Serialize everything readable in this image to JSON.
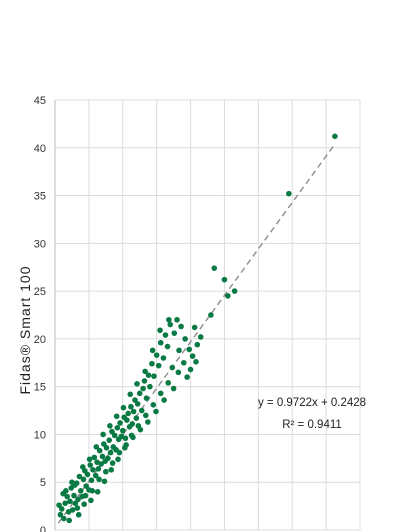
{
  "chart_data": {
    "type": "scatter",
    "ylabel": "Fidas® Smart 100",
    "xlabel": "",
    "ylim": [
      0,
      45
    ],
    "xlim": [
      0,
      45
    ],
    "yticks": [
      "0",
      "5",
      "10",
      "15",
      "20",
      "25",
      "30",
      "35",
      "40",
      "45"
    ],
    "grid": true,
    "marker_color": "#0a7a45",
    "trendline": {
      "slope": 0.9722,
      "intercept": 0.2428,
      "x_range": [
        0.5,
        41.3
      ],
      "style": "dashed",
      "color": "#8c8c8c",
      "equation": "y = 0.9722x + 0.2428",
      "r2_label": "R² = 0.9411"
    },
    "series": [
      {
        "points": [
          [
            0.8,
            1.6
          ],
          [
            1.0,
            2.2
          ],
          [
            1.3,
            1.2
          ],
          [
            1.5,
            2.8
          ],
          [
            1.8,
            3.5
          ],
          [
            2.0,
            1.9
          ],
          [
            2.2,
            3.0
          ],
          [
            2.4,
            4.4
          ],
          [
            2.6,
            2.1
          ],
          [
            2.8,
            3.6
          ],
          [
            3.0,
            2.8
          ],
          [
            3.2,
            4.9
          ],
          [
            3.4,
            3.2
          ],
          [
            3.6,
            5.6
          ],
          [
            3.8,
            4.1
          ],
          [
            4.0,
            3.5
          ],
          [
            4.2,
            5.3
          ],
          [
            4.4,
            6.2
          ],
          [
            4.6,
            4.6
          ],
          [
            4.8,
            5.8
          ],
          [
            5.0,
            4.2
          ],
          [
            5.2,
            6.8
          ],
          [
            5.4,
            5.2
          ],
          [
            5.6,
            6.3
          ],
          [
            5.8,
            7.6
          ],
          [
            6.0,
            5.7
          ],
          [
            6.2,
            7.1
          ],
          [
            6.4,
            6.4
          ],
          [
            6.6,
            8.3
          ],
          [
            6.8,
            6.9
          ],
          [
            7.0,
            7.7
          ],
          [
            7.2,
            9.0
          ],
          [
            7.4,
            7.2
          ],
          [
            7.6,
            8.6
          ],
          [
            7.8,
            7.5
          ],
          [
            8.0,
            9.4
          ],
          [
            8.2,
            8.1
          ],
          [
            8.4,
            10.3
          ],
          [
            8.6,
            8.7
          ],
          [
            8.8,
            9.9
          ],
          [
            9.0,
            8.4
          ],
          [
            9.2,
            10.7
          ],
          [
            9.4,
            9.5
          ],
          [
            9.6,
            11.2
          ],
          [
            9.8,
            9.8
          ],
          [
            10.0,
            10.4
          ],
          [
            10.2,
            11.8
          ],
          [
            10.4,
            9.6
          ],
          [
            10.6,
            11.5
          ],
          [
            10.8,
            12.2
          ],
          [
            11.0,
            10.8
          ],
          [
            11.2,
            12.9
          ],
          [
            11.4,
            11.1
          ],
          [
            11.6,
            12.4
          ],
          [
            11.8,
            13.6
          ],
          [
            12.0,
            11.7
          ],
          [
            12.2,
            13.2
          ],
          [
            12.5,
            14.3
          ],
          [
            12.8,
            12.5
          ],
          [
            13.0,
            14.8
          ],
          [
            13.2,
            15.6
          ],
          [
            13.5,
            13.8
          ],
          [
            13.8,
            16.2
          ],
          [
            14.0,
            15.0
          ],
          [
            14.3,
            17.4
          ],
          [
            14.6,
            16.1
          ],
          [
            15.0,
            18.3
          ],
          [
            15.3,
            17.2
          ],
          [
            15.6,
            19.6
          ],
          [
            16.0,
            18.0
          ],
          [
            16.3,
            20.4
          ],
          [
            16.6,
            19.2
          ],
          [
            17.0,
            21.5
          ],
          [
            17.3,
            17.0
          ],
          [
            17.6,
            20.6
          ],
          [
            18.0,
            22.0
          ],
          [
            18.3,
            18.8
          ],
          [
            18.6,
            21.3
          ],
          [
            19.0,
            17.5
          ],
          [
            19.2,
            20.0
          ],
          [
            19.5,
            16.0
          ],
          [
            20.0,
            16.8
          ],
          [
            20.3,
            18.2
          ],
          [
            20.8,
            17.6
          ],
          [
            21.0,
            19.4
          ],
          [
            21.5,
            20.2
          ],
          [
            1.2,
            3.8
          ],
          [
            2.1,
            1.0
          ],
          [
            2.9,
            4.7
          ],
          [
            3.3,
            2.3
          ],
          [
            4.1,
            6.6
          ],
          [
            4.5,
            3.6
          ],
          [
            5.1,
            7.4
          ],
          [
            5.5,
            4.1
          ],
          [
            6.1,
            8.7
          ],
          [
            6.5,
            5.3
          ],
          [
            7.1,
            10.0
          ],
          [
            7.5,
            6.1
          ],
          [
            8.1,
            10.9
          ],
          [
            8.5,
            7.0
          ],
          [
            9.1,
            11.9
          ],
          [
            9.5,
            8.1
          ],
          [
            10.1,
            12.8
          ],
          [
            10.5,
            8.9
          ],
          [
            11.1,
            14.2
          ],
          [
            11.5,
            9.7
          ],
          [
            12.1,
            15.3
          ],
          [
            12.6,
            10.5
          ],
          [
            13.3,
            16.6
          ],
          [
            13.7,
            11.3
          ],
          [
            14.4,
            18.8
          ],
          [
            14.9,
            12.4
          ],
          [
            15.5,
            20.9
          ],
          [
            16.1,
            13.6
          ],
          [
            16.8,
            22.0
          ],
          [
            17.5,
            14.8
          ],
          [
            0.6,
            2.6
          ],
          [
            1.6,
            4.1
          ],
          [
            2.5,
            5.0
          ],
          [
            3.5,
            1.6
          ],
          [
            4.3,
            2.7
          ],
          [
            5.3,
            3.1
          ],
          [
            6.3,
            4.0
          ],
          [
            7.3,
            5.1
          ],
          [
            8.3,
            6.3
          ],
          [
            9.3,
            7.4
          ],
          [
            10.3,
            8.6
          ],
          [
            11.3,
            9.9
          ],
          [
            12.3,
            10.9
          ],
          [
            13.4,
            12.0
          ],
          [
            14.5,
            13.1
          ],
          [
            15.6,
            14.3
          ],
          [
            16.7,
            15.4
          ],
          [
            18.2,
            16.5
          ],
          [
            19.8,
            18.9
          ],
          [
            20.6,
            21.2
          ],
          [
            23.0,
            22.5
          ],
          [
            23.5,
            27.4
          ],
          [
            25.0,
            26.2
          ],
          [
            25.5,
            24.5
          ],
          [
            26.5,
            25.0
          ],
          [
            34.5,
            35.2
          ],
          [
            41.3,
            41.2
          ]
        ]
      }
    ]
  }
}
